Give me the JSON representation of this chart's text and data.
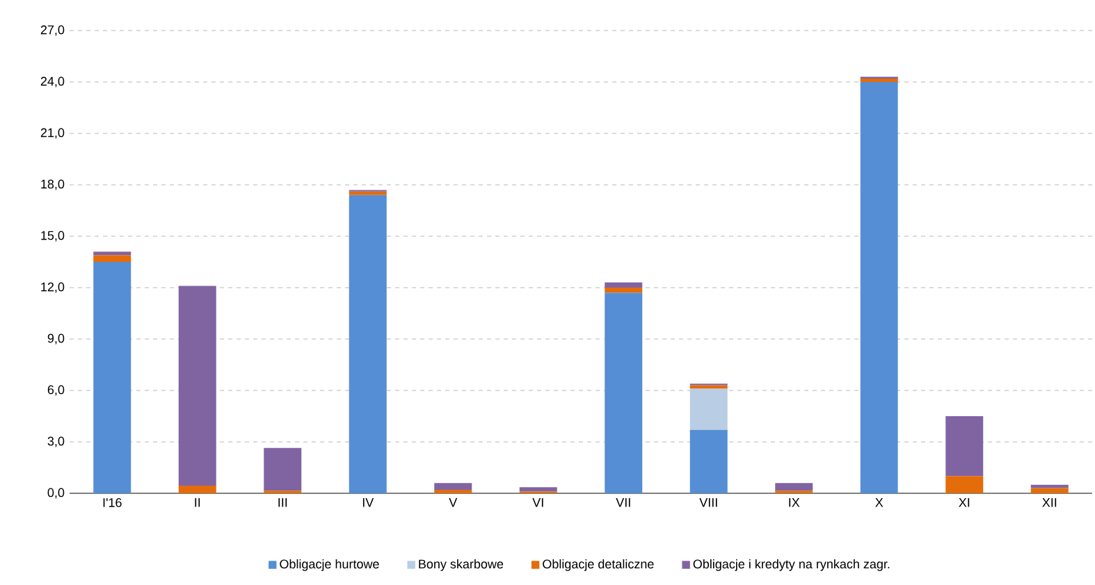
{
  "chart_data": {
    "type": "bar",
    "stacked": true,
    "categories": [
      "I'16",
      "II",
      "III",
      "IV",
      "V",
      "VI",
      "VII",
      "VIII",
      "IX",
      "X",
      "XI",
      "XII"
    ],
    "series": [
      {
        "name": "Obligacje hurtowe",
        "color": "#558ed5",
        "values": [
          13.5,
          0,
          0,
          17.4,
          0,
          0,
          11.7,
          3.7,
          0,
          24.0,
          0,
          0
        ]
      },
      {
        "name": "Bony skarbowe",
        "color": "#b9cde5",
        "values": [
          0,
          0,
          0,
          0,
          0,
          0,
          0,
          2.4,
          0,
          0,
          0,
          0
        ]
      },
      {
        "name": "Obligacje detaliczne",
        "color": "#e46c0a",
        "values": [
          0.4,
          0.45,
          0.15,
          0.2,
          0.2,
          0.1,
          0.3,
          0.2,
          0.15,
          0.2,
          1.0,
          0.3
        ]
      },
      {
        "name": "Obligacje i kredyty na rynkach zagr.",
        "color": "#8064a2",
        "values": [
          0.2,
          11.65,
          2.5,
          0.1,
          0.4,
          0.25,
          0.3,
          0.1,
          0.45,
          0.1,
          3.5,
          0.2
        ]
      }
    ],
    "ylim": [
      0,
      27
    ],
    "yticks": [
      {
        "value": 0,
        "label": "0,0"
      },
      {
        "value": 3,
        "label": "3,0"
      },
      {
        "value": 6,
        "label": "6,0"
      },
      {
        "value": 9,
        "label": "9,0"
      },
      {
        "value": 12,
        "label": "12,0"
      },
      {
        "value": 15,
        "label": "15,0"
      },
      {
        "value": 18,
        "label": "18,0"
      },
      {
        "value": 21,
        "label": "21,0"
      },
      {
        "value": 24,
        "label": "24,0"
      },
      {
        "value": 27,
        "label": "27,0"
      }
    ],
    "grid": "y",
    "legend": "bottom"
  }
}
